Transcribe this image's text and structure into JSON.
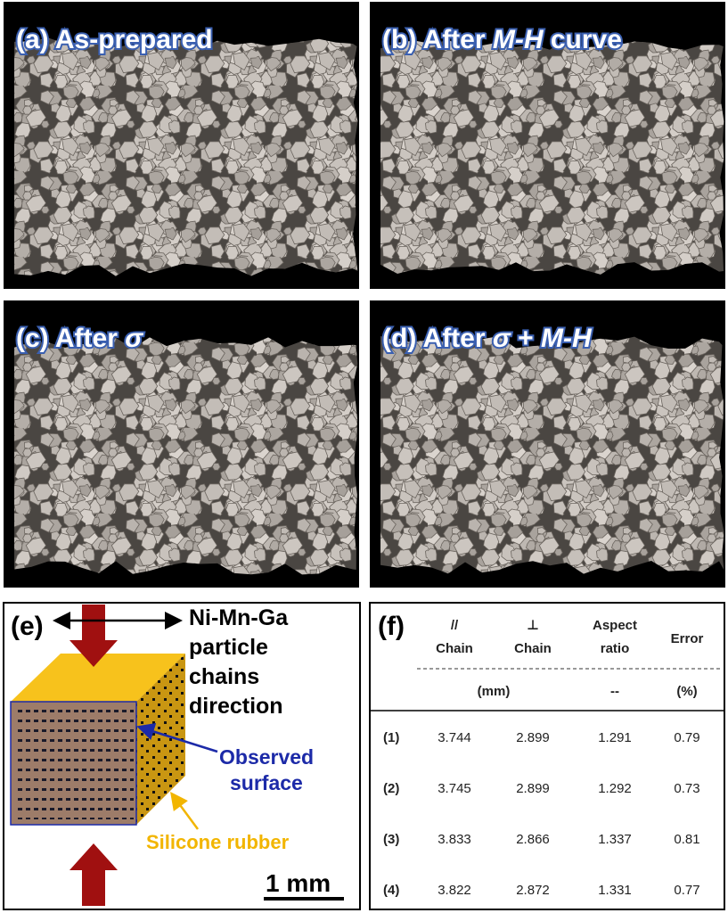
{
  "panels": [
    {
      "label": [
        "(a) As-prepared"
      ]
    },
    {
      "label": [
        "(b) After ",
        "M-H",
        " curve"
      ]
    },
    {
      "label": [
        "(c) After ",
        "σ"
      ]
    },
    {
      "label": [
        "(d) After ",
        "σ",
        " + ",
        "M-H"
      ]
    }
  ],
  "schematic": {
    "label": "(e)",
    "direction": [
      "Ni-Mn-Ga",
      "particle",
      "chains",
      "direction"
    ],
    "observed": [
      "Observed",
      "surface"
    ],
    "rubber": "Silicone rubber",
    "scale": "1 mm"
  },
  "table": {
    "label": "(f)",
    "headers": [
      [
        "//",
        "Chain"
      ],
      [
        "⊥",
        "Chain"
      ],
      [
        "Aspect",
        "ratio"
      ],
      [
        "Error"
      ]
    ],
    "units": [
      "(mm)",
      "--",
      "(%)"
    ],
    "rows": [
      [
        "(1)",
        "3.744",
        "2.899",
        "1.291",
        "0.79"
      ],
      [
        "(2)",
        "3.745",
        "2.899",
        "1.292",
        "0.73"
      ],
      [
        "(3)",
        "3.833",
        "2.866",
        "1.337",
        "0.81"
      ],
      [
        "(4)",
        "3.822",
        "2.872",
        "1.331",
        "0.77"
      ]
    ]
  }
}
